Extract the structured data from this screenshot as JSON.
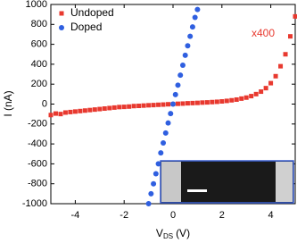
{
  "chart_data": {
    "type": "scatter",
    "x_label": {
      "main": "V",
      "sub": "DS",
      "unit": "(V)"
    },
    "y_label": "I (nA)",
    "annotation": "x400",
    "xlim": [
      -5,
      5
    ],
    "xticks": [
      -4,
      -2,
      0,
      2,
      4
    ],
    "ylim": [
      -1000,
      1000
    ],
    "yticks": [
      -1000,
      -800,
      -600,
      -400,
      -200,
      0,
      200,
      400,
      600,
      800,
      1000
    ],
    "legend": "upper left",
    "series": [
      {
        "name": "Undoped",
        "color": "#e8392f",
        "marker": "square",
        "x": [
          -5,
          -4.8,
          -4.6,
          -4.4,
          -4.2,
          -4,
          -3.8,
          -3.6,
          -3.4,
          -3.2,
          -3,
          -2.8,
          -2.6,
          -2.4,
          -2.2,
          -2,
          -1.8,
          -1.6,
          -1.4,
          -1.2,
          -1,
          -0.8,
          -0.6,
          -0.4,
          -0.2,
          0,
          0.2,
          0.4,
          0.6,
          0.8,
          1,
          1.2,
          1.4,
          1.6,
          1.8,
          2,
          2.2,
          2.4,
          2.6,
          2.8,
          3,
          3.2,
          3.4,
          3.6,
          3.8,
          4,
          4.2,
          4.4,
          4.6,
          4.8,
          5
        ],
        "values": [
          -110,
          -95,
          -100,
          -85,
          -80,
          -75,
          -70,
          -65,
          -60,
          -55,
          -50,
          -45,
          -40,
          -35,
          -30,
          -28,
          -25,
          -20,
          -18,
          -15,
          -12,
          -10,
          -7,
          -5,
          -2,
          0,
          3,
          5,
          8,
          10,
          12,
          15,
          17,
          20,
          23,
          27,
          32,
          38,
          45,
          55,
          65,
          80,
          100,
          125,
          160,
          210,
          280,
          380,
          500,
          680,
          880
        ]
      },
      {
        "name": "Doped",
        "color": "#2f5fe0",
        "marker": "circle",
        "x": [
          -1,
          -0.9,
          -0.8,
          -0.7,
          -0.6,
          -0.5,
          -0.4,
          -0.3,
          -0.2,
          -0.1,
          0,
          0.1,
          0.2,
          0.3,
          0.4,
          0.5,
          0.6,
          0.7,
          0.8,
          0.9,
          1
        ],
        "values": [
          -1000,
          -900,
          -800,
          -700,
          -600,
          -490,
          -390,
          -290,
          -190,
          -95,
          0,
          95,
          190,
          290,
          390,
          490,
          585,
          680,
          775,
          870,
          950
        ]
      }
    ]
  }
}
